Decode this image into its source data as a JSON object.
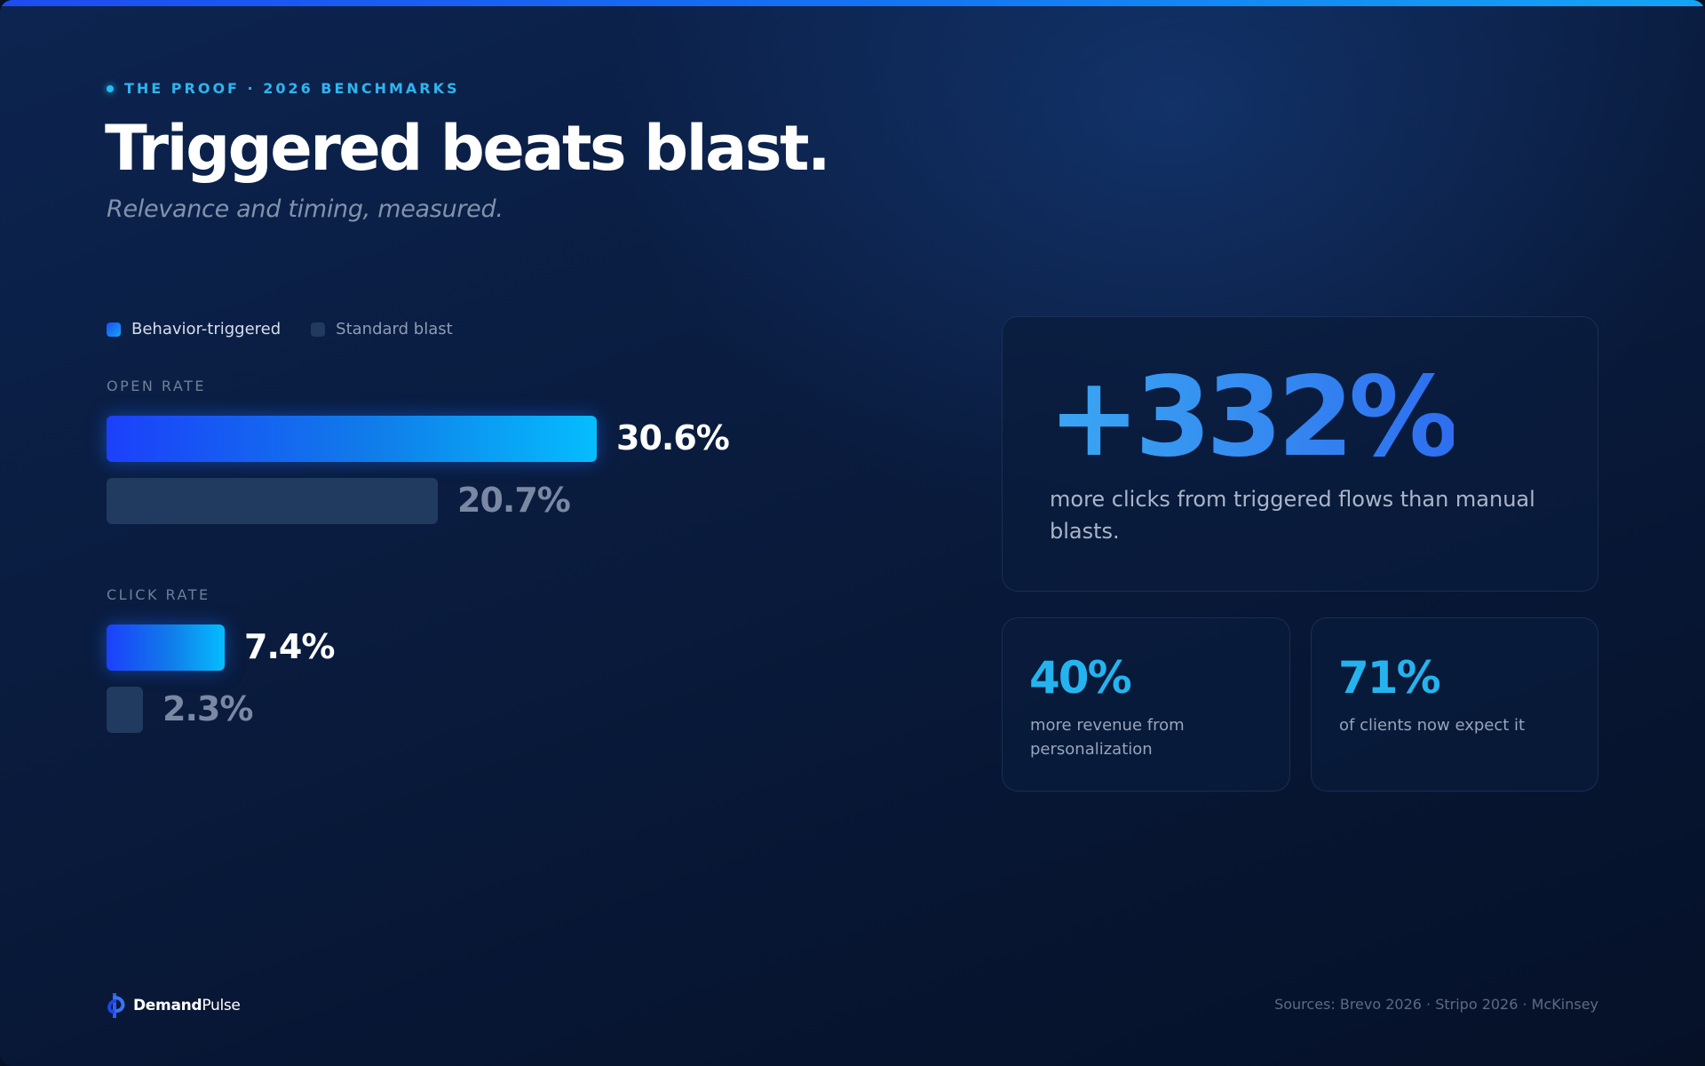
{
  "header": {
    "eyebrow": "THE PROOF · 2026 BENCHMARKS",
    "title": "Triggered beats blast.",
    "subtitle": "Relevance and timing, measured."
  },
  "colors": {
    "primary_start": "#1c40fb",
    "primary_end": "#05bdfe",
    "secondary": "#213a5f",
    "accent": "#25b3ee"
  },
  "chart_data": {
    "type": "bar",
    "orientation": "horizontal",
    "categories": [
      "OPEN RATE",
      "CLICK RATE"
    ],
    "series": [
      {
        "name": "Behavior-triggered",
        "values": [
          30.6,
          7.4
        ],
        "labels": [
          "30.6%",
          "7.4%"
        ]
      },
      {
        "name": "Standard blast",
        "values": [
          20.7,
          2.3
        ],
        "labels": [
          "20.7%",
          "2.3%"
        ]
      }
    ],
    "unit": "%",
    "legend": "top-left",
    "grid": false
  },
  "highlight": {
    "value": "+332%",
    "description": "more clicks from triggered flows than manual blasts."
  },
  "stats": [
    {
      "value": "40%",
      "description": "more revenue from personalization"
    },
    {
      "value": "71%",
      "description": "of clients now expect it"
    }
  ],
  "footer": {
    "brand_bold": "Demand",
    "brand_light": "Pulse",
    "sources": "Sources: Brevo 2026 · Stripo 2026 · McKinsey"
  }
}
